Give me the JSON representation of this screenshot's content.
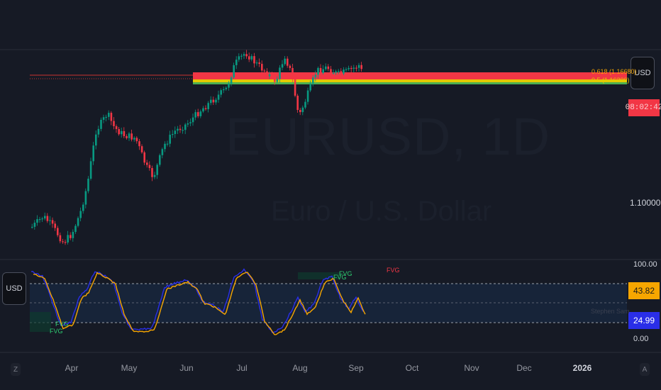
{
  "watermark": {
    "title": "EURUSD, 1D",
    "subtitle": "Euro / U.S. Dollar"
  },
  "price_axis": {
    "currency_button": "USD",
    "price_label": "1.10000",
    "countdown": "08:02:42",
    "level_label_1": "0.618 (1.16680)",
    "level_label_2": "0.5 (1.16300)"
  },
  "indicator": {
    "currency_button": "USD",
    "axis_top": "100.00",
    "axis_bottom": "0.00",
    "value_orange": "43.82",
    "value_blue": "24.99",
    "pane_label": "Stephen Sam",
    "fvg_label": "FVG"
  },
  "time_axis": {
    "labels": [
      "Apr",
      "May",
      "Jun",
      "Jul",
      "Aug",
      "Sep",
      "Oct",
      "Nov",
      "Dec",
      "2026"
    ],
    "left_button": "Z",
    "right_button": "A"
  },
  "colors": {
    "background": "#161a25",
    "bull": "#089981",
    "bear": "#f23645",
    "orange_line": "#f7a600",
    "blue_line": "#2a2ee8",
    "band": "#1a2d4a",
    "yellow_level": "#e5c800",
    "green_level": "#4caf50"
  },
  "icons": [
    "usd-button-icon",
    "countdown-badge"
  ]
}
